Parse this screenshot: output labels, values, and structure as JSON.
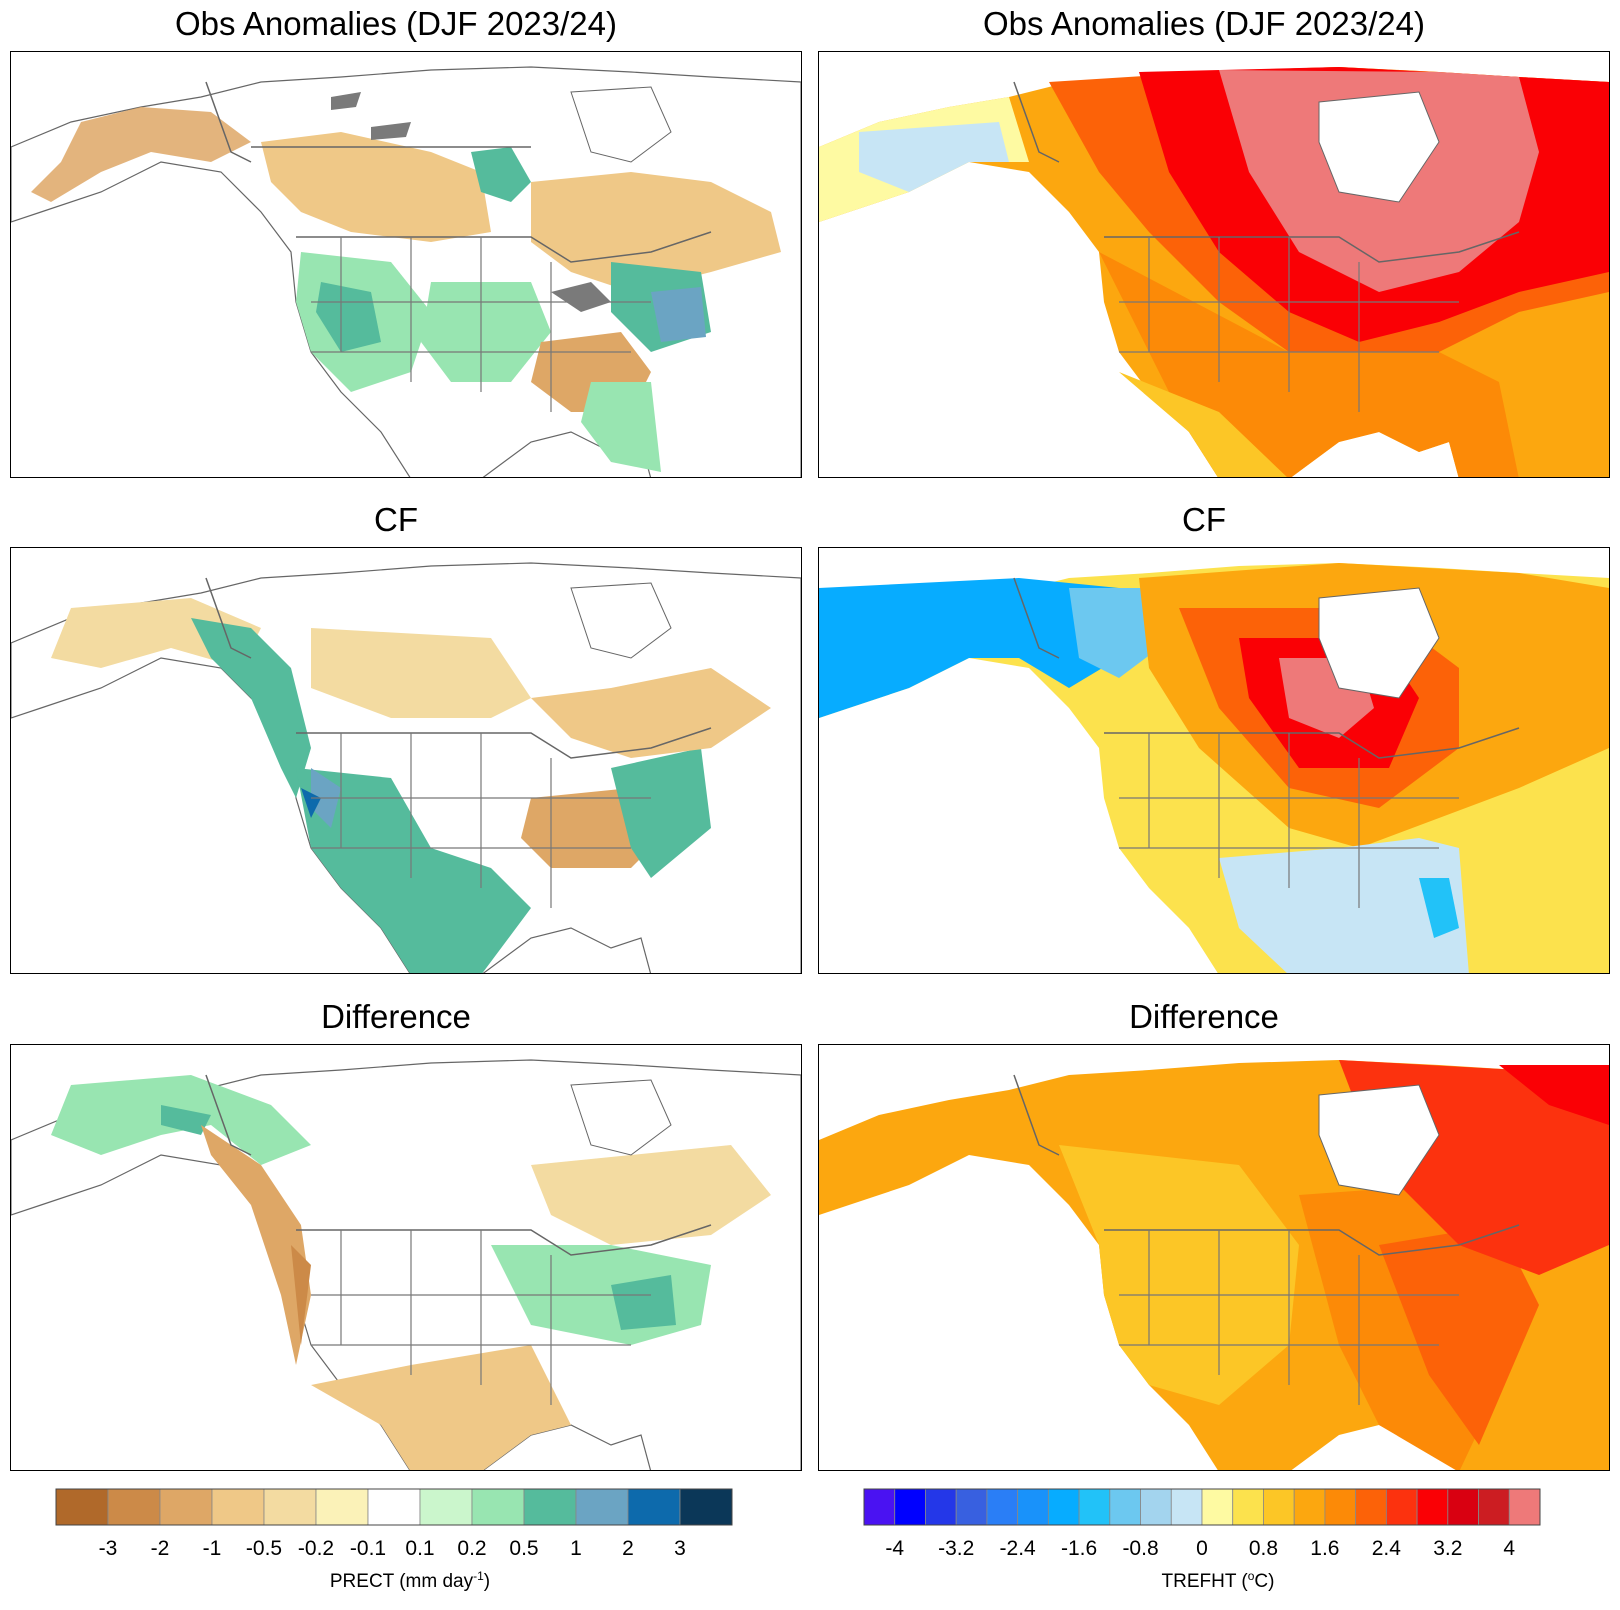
{
  "panels": {
    "top_left": {
      "title": "Obs Anomalies (DJF 2023/24)",
      "variable": "PRECT"
    },
    "top_right": {
      "title": "Obs Anomalies (DJF 2023/24)",
      "variable": "TREFHT"
    },
    "mid_left": {
      "title": "CF",
      "variable": "PRECT"
    },
    "mid_right": {
      "title": "CF",
      "variable": "TREFHT"
    },
    "bot_left": {
      "title": "Difference",
      "variable": "PRECT"
    },
    "bot_right": {
      "title": "Difference",
      "variable": "TREFHT"
    }
  },
  "colorbars": {
    "prect": {
      "title": "PRECT (mm day",
      "title_sup": "-1",
      "title_end": ")",
      "labels": [
        "-3",
        "-2",
        "-1",
        "-0.5",
        "-0.2",
        "-0.1",
        "0.1",
        "0.2",
        "0.5",
        "1",
        "2",
        "3"
      ],
      "colors": [
        "#b0692a",
        "#cc8a48",
        "#dea766",
        "#efc887",
        "#f3dba1",
        "#fbf2b8",
        "#ffffff",
        "#cbf6cc",
        "#98e5b1",
        "#55bb9c",
        "#6ba4c3",
        "#0d6aac",
        "#0b3758"
      ]
    },
    "trefht": {
      "title": "TREFHT (",
      "title_sup": "o",
      "title_end": "C)",
      "labels": [
        "-4",
        "-3.2",
        "-2.4",
        "-1.6",
        "-0.8",
        "0",
        "0.8",
        "1.6",
        "2.4",
        "3.2",
        "4"
      ],
      "colors": [
        "#4a12f2",
        "#0000ff",
        "#2437e8",
        "#3860e0",
        "#2a7ef6",
        "#1992fa",
        "#07acff",
        "#22c2f8",
        "#6cc8f0",
        "#a3d4ee",
        "#c7e5f5",
        "#fefaa2",
        "#fce24d",
        "#fcc626",
        "#fca70f",
        "#fc8a07",
        "#fc6208",
        "#fc320e",
        "#fa0005",
        "#d90011",
        "#cc1d22",
        "#ee7979"
      ]
    }
  },
  "colors": {
    "land_outline": "#666666",
    "lakes": "#7a7a7a",
    "frame": "#000000"
  }
}
